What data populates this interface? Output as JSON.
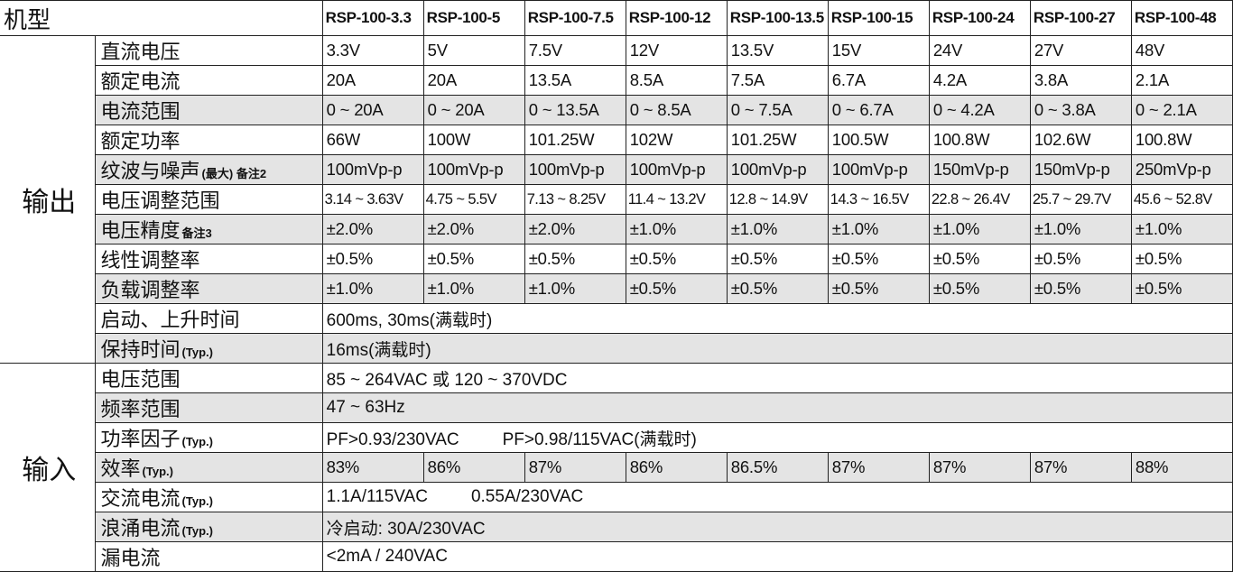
{
  "header": {
    "title": "机型",
    "models": [
      "RSP-100-3.3",
      "RSP-100-5",
      "RSP-100-7.5",
      "RSP-100-12",
      "RSP-100-13.5",
      "RSP-100-15",
      "RSP-100-24",
      "RSP-100-27",
      "RSP-100-48"
    ]
  },
  "groups": [
    {
      "name": "输出",
      "rows": [
        {
          "label": "直流电压",
          "values": [
            "3.3V",
            "5V",
            "7.5V",
            "12V",
            "13.5V",
            "15V",
            "24V",
            "27V",
            "48V"
          ]
        },
        {
          "label": "额定电流",
          "values": [
            "20A",
            "20A",
            "13.5A",
            "8.5A",
            "7.5A",
            "6.7A",
            "4.2A",
            "3.8A",
            "2.1A"
          ]
        },
        {
          "label": "电流范围",
          "values": [
            "0 ~ 20A",
            "0 ~ 20A",
            "0 ~ 13.5A",
            "0 ~ 8.5A",
            "0 ~ 7.5A",
            "0 ~ 6.7A",
            "0 ~ 4.2A",
            "0 ~ 3.8A",
            "0 ~ 2.1A"
          ]
        },
        {
          "label": "额定功率",
          "values": [
            "66W",
            "100W",
            "101.25W",
            "102W",
            "101.25W",
            "100.5W",
            "100.8W",
            "102.6W",
            "100.8W"
          ]
        },
        {
          "label": "纹波与噪声",
          "note": "(最大) 备注2",
          "values": [
            "100mVp-p",
            "100mVp-p",
            "100mVp-p",
            "100mVp-p",
            "100mVp-p",
            "100mVp-p",
            "150mVp-p",
            "150mVp-p",
            "250mVp-p"
          ]
        },
        {
          "label": "电压调整范围",
          "values": [
            "3.14 ~ 3.63V",
            "4.75 ~ 5.5V",
            "7.13 ~ 8.25V",
            "11.4 ~ 13.2V",
            "12.8 ~ 14.9V",
            "14.3 ~ 16.5V",
            "22.8 ~ 26.4V",
            "25.7 ~ 29.7V",
            "45.6 ~ 52.8V"
          ]
        },
        {
          "label": "电压精度",
          "note": "备注3",
          "values": [
            "±2.0%",
            "±2.0%",
            "±2.0%",
            "±1.0%",
            "±1.0%",
            "±1.0%",
            "±1.0%",
            "±1.0%",
            "±1.0%"
          ]
        },
        {
          "label": "线性调整率",
          "values": [
            "±0.5%",
            "±0.5%",
            "±0.5%",
            "±0.5%",
            "±0.5%",
            "±0.5%",
            "±0.5%",
            "±0.5%",
            "±0.5%"
          ]
        },
        {
          "label": "负载调整率",
          "values": [
            "±1.0%",
            "±1.0%",
            "±1.0%",
            "±0.5%",
            "±0.5%",
            "±0.5%",
            "±0.5%",
            "±0.5%",
            "±0.5%"
          ]
        },
        {
          "label": "启动、上升时间",
          "parts": [
            "600ms, 30ms(满载时)"
          ]
        },
        {
          "label": "保持时间",
          "note": "(Typ.)",
          "parts": [
            "16ms(满载时)"
          ]
        }
      ]
    },
    {
      "name": "输入",
      "rows": [
        {
          "label": "电压范围",
          "parts": [
            "85 ~ 264VAC 或 120 ~ 370VDC"
          ]
        },
        {
          "label": "频率范围",
          "parts": [
            "47 ~ 63Hz"
          ]
        },
        {
          "label": "功率因子",
          "note": "(Typ.)",
          "parts": [
            "PF>0.93/230VAC",
            "PF>0.98/115VAC(满载时)"
          ]
        },
        {
          "label": "效率",
          "note": "(Typ.)",
          "values": [
            "83%",
            "86%",
            "87%",
            "86%",
            "86.5%",
            "87%",
            "87%",
            "87%",
            "88%"
          ]
        },
        {
          "label": "交流电流",
          "note": "(Typ.)",
          "parts": [
            "1.1A/115VAC",
            "0.55A/230VAC"
          ]
        },
        {
          "label": "浪涌电流",
          "note": "(Typ.)",
          "parts": [
            "冷启动: 30A/230VAC"
          ]
        },
        {
          "label": "漏电流",
          "parts": [
            "<2mA / 240VAC"
          ]
        }
      ]
    }
  ]
}
